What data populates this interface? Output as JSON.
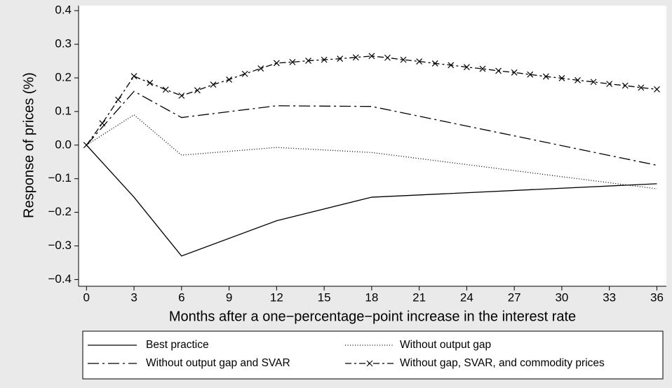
{
  "chart_data": {
    "type": "line",
    "x_label": "Months after a one−percentage−point increase in the interest rate",
    "y_label": "Response of prices (%)",
    "xlim": [
      -0.5,
      36.6
    ],
    "ylim": [
      -0.42,
      0.415
    ],
    "xticks": [
      0,
      3,
      6,
      9,
      12,
      15,
      18,
      21,
      24,
      27,
      30,
      33,
      36
    ],
    "yticks": [
      0.4,
      0.3,
      0.2,
      0.1,
      {
        "value": 0,
        "label": "0.0"
      },
      {
        "value": -0.1,
        "label": "−0.1"
      },
      {
        "value": -0.2,
        "label": "−0.2"
      },
      {
        "value": -0.3,
        "label": "−0.3"
      },
      {
        "value": -0.4,
        "label": "−0.4"
      }
    ],
    "grid": true,
    "series": [
      {
        "name": "Best practice",
        "color": "#000000",
        "dash": "solid",
        "x": [
          0,
          3,
          6,
          12,
          18,
          36
        ],
        "values": [
          0,
          -0.155,
          -0.33,
          -0.225,
          -0.155,
          -0.115
        ]
      },
      {
        "name": "Without output gap",
        "color": "#000000",
        "dash": "dotted",
        "x": [
          0,
          3,
          6,
          12,
          18,
          36
        ],
        "values": [
          0,
          0.09,
          -0.03,
          -0.007,
          -0.022,
          -0.13
        ]
      },
      {
        "name": "Without output gap and SVAR",
        "color": "#000000",
        "dash": "longdashdot",
        "x": [
          0,
          3,
          6,
          12,
          18,
          36
        ],
        "values": [
          0,
          0.16,
          0.082,
          0.117,
          0.115,
          -0.06
        ]
      },
      {
        "name": "Without gap, SVAR, and commodity prices",
        "color": "#000000",
        "dash": "dashdot",
        "marker": "x",
        "x": [
          0,
          1,
          2,
          3,
          4,
          5,
          6,
          7,
          8,
          9,
          10,
          11,
          12,
          13,
          14,
          15,
          16,
          17,
          18,
          19,
          20,
          21,
          22,
          23,
          24,
          25,
          26,
          27,
          28,
          29,
          30,
          31,
          32,
          33,
          34,
          35,
          36
        ],
        "values": [
          0,
          0.065,
          0.135,
          0.205,
          0.185,
          0.165,
          0.147,
          0.163,
          0.18,
          0.195,
          0.212,
          0.228,
          0.244,
          0.247,
          0.251,
          0.254,
          0.257,
          0.261,
          0.265,
          0.26,
          0.254,
          0.249,
          0.243,
          0.238,
          0.232,
          0.227,
          0.221,
          0.216,
          0.21,
          0.204,
          0.199,
          0.193,
          0.188,
          0.182,
          0.177,
          0.171,
          0.166
        ]
      }
    ]
  }
}
